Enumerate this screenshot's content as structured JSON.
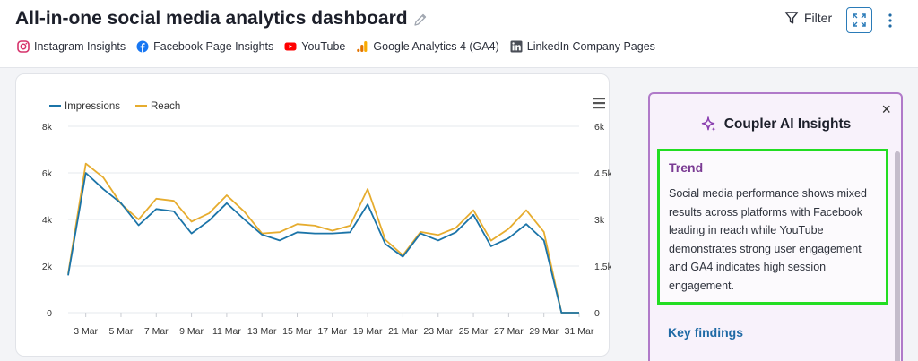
{
  "header": {
    "title": "All-in-one social media analytics dashboard",
    "filter_label": "Filter",
    "sources": [
      {
        "label": "Instagram Insights",
        "icon": "instagram-icon"
      },
      {
        "label": "Facebook Page Insights",
        "icon": "facebook-icon"
      },
      {
        "label": "YouTube",
        "icon": "youtube-icon"
      },
      {
        "label": "Google Analytics 4 (GA4)",
        "icon": "google-analytics-icon"
      },
      {
        "label": "LinkedIn Company Pages",
        "icon": "linkedin-icon"
      }
    ]
  },
  "colors": {
    "impressions": "#1b74a8",
    "reach": "#e6ac2e",
    "accent": "#2a7bb8",
    "ai_border": "#b07ac9",
    "highlight": "#22dd22"
  },
  "chart_data": {
    "type": "line",
    "legend_position": "top-left",
    "x_ticks": [
      "3 Mar",
      "5 Mar",
      "7 Mar",
      "9 Mar",
      "11 Mar",
      "13 Mar",
      "15 Mar",
      "17 Mar",
      "19 Mar",
      "21 Mar",
      "23 Mar",
      "25 Mar",
      "27 Mar",
      "29 Mar",
      "31 Mar"
    ],
    "x_days": [
      2,
      3,
      4,
      5,
      6,
      7,
      8,
      9,
      10,
      11,
      12,
      13,
      14,
      15,
      16,
      17,
      18,
      19,
      20,
      21,
      22,
      23,
      24,
      25,
      26,
      27,
      28,
      29,
      30,
      31
    ],
    "y_left": {
      "ticks": [
        "0",
        "2k",
        "4k",
        "6k",
        "8k"
      ],
      "range": [
        0,
        8000
      ]
    },
    "y_right": {
      "ticks": [
        "0",
        "1.5k",
        "3k",
        "4.5k",
        "6k"
      ],
      "range": [
        0,
        6000
      ]
    },
    "grid": true,
    "series": [
      {
        "name": "Impressions",
        "axis": "left",
        "values": [
          1600,
          6000,
          5300,
          4700,
          3750,
          4450,
          4350,
          3400,
          3950,
          4700,
          4000,
          3350,
          3100,
          3450,
          3400,
          3400,
          3450,
          4650,
          2950,
          2400,
          3400,
          3100,
          3450,
          4200,
          2850,
          3200,
          3800,
          3100,
          0,
          0
        ]
      },
      {
        "name": "Reach",
        "axis": "right",
        "values": [
          1250,
          4800,
          4350,
          3500,
          3000,
          3670,
          3600,
          2930,
          3200,
          3780,
          3250,
          2550,
          2590,
          2850,
          2800,
          2640,
          2800,
          3980,
          2350,
          1850,
          2600,
          2500,
          2730,
          3300,
          2320,
          2700,
          3300,
          2600,
          0,
          0
        ]
      }
    ]
  },
  "ai_panel": {
    "title": "Coupler AI Insights",
    "trend_title": "Trend",
    "trend_text": "Social media performance shows mixed results across platforms with Facebook leading in reach while YouTube demonstrates strong user engagement and GA4 indicates high session engagement.",
    "key_findings_title": "Key findings"
  }
}
